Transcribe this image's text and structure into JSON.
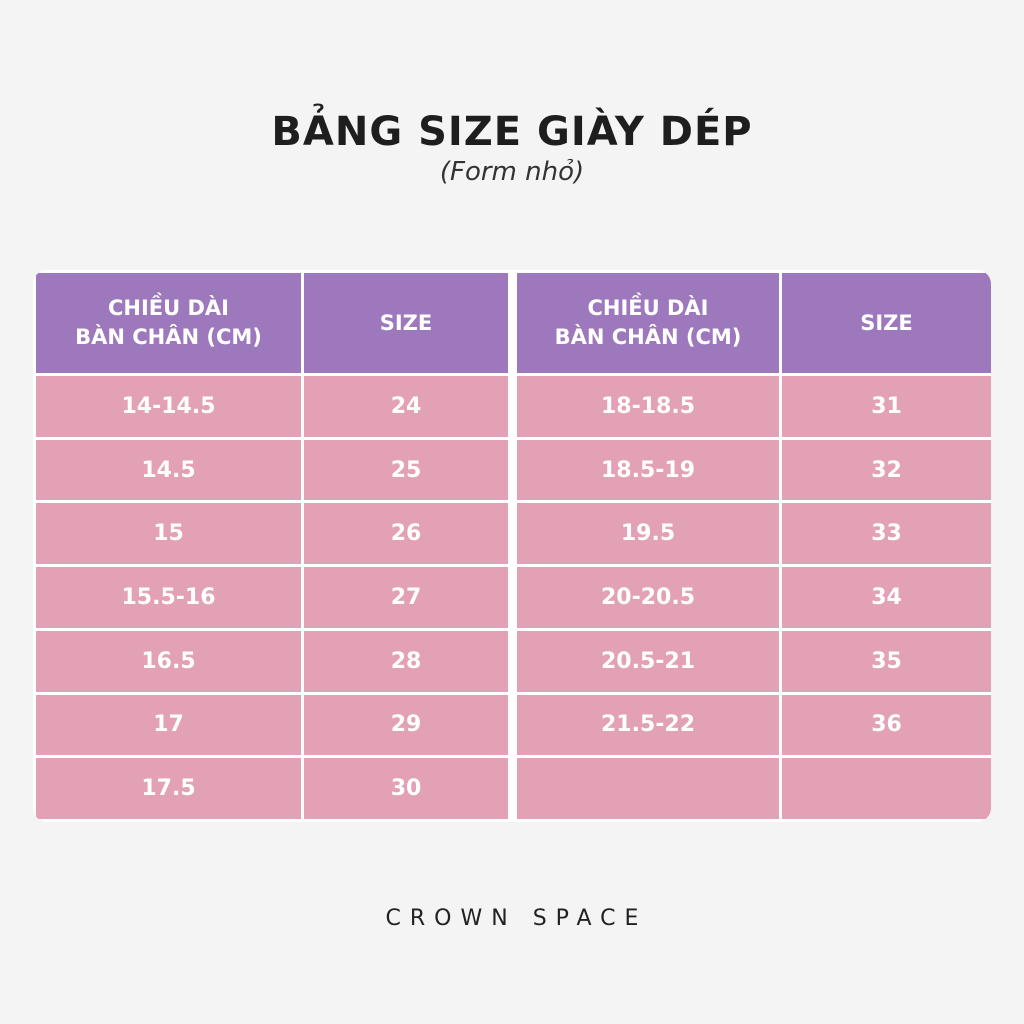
{
  "title": "BẢNG SIZE GIÀY DÉP",
  "subtitle": "(Form nhỏ)",
  "table": {
    "headers": [
      {
        "line1": "CHIỀU DÀI",
        "line2": "BÀN CHÂN (CM)"
      },
      {
        "line1": "SIZE",
        "line2": ""
      },
      {
        "line1": "CHIỀU DÀI",
        "line2": "BÀN CHÂN (CM)"
      },
      {
        "line1": "SIZE",
        "line2": ""
      }
    ],
    "rows": [
      [
        "14-14.5",
        "24",
        "18-18.5",
        "31"
      ],
      [
        "14.5",
        "25",
        "18.5-19",
        "32"
      ],
      [
        "15",
        "26",
        "19.5",
        "33"
      ],
      [
        "15.5-16",
        "27",
        "20-20.5",
        "34"
      ],
      [
        "16.5",
        "28",
        "20.5-21",
        "35"
      ],
      [
        "17",
        "29",
        "21.5-22",
        "36"
      ],
      [
        "17.5",
        "30",
        "",
        ""
      ]
    ]
  },
  "brand": "CROWN SPACE",
  "colors": {
    "header_bg": "#9d78bd",
    "cell_bg": "#e2a1b4",
    "page_bg": "#f4f4f4"
  }
}
